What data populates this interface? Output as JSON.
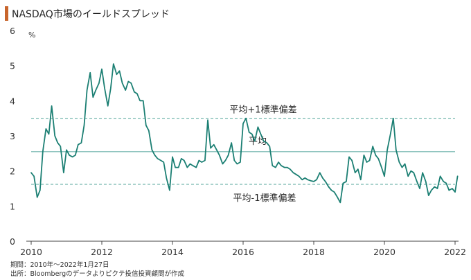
{
  "header": {
    "title": "NASDAQ市場のイールドスプレッド",
    "accent_color": "#c8652c"
  },
  "footer": {
    "period_note": "期間：2010年～2022年1月27日",
    "source_note": "出所：Bloombergのデータよりピクテ投信投資顧問が作成"
  },
  "chart_data": {
    "type": "line",
    "title": "NASDAQ市場のイールドスプレッド",
    "xlabel": "",
    "ylabel": "",
    "y_unit_label": "%",
    "xlim": [
      2010,
      2022
    ],
    "ylim": [
      0,
      6
    ],
    "x_ticks": [
      "2010",
      "2012",
      "2014",
      "2016",
      "2018",
      "2020",
      "2022"
    ],
    "y_ticks": [
      "0",
      "1",
      "2",
      "3",
      "4",
      "5",
      "6"
    ],
    "grid": false,
    "line_color": "#1b7f73",
    "reference_lines": [
      {
        "label": "平均+1標準偏差",
        "value": 3.5,
        "style": "dashed",
        "color": "#7fbcb4"
      },
      {
        "label": "平均",
        "value": 2.55,
        "style": "solid",
        "color": "#7fbcb4"
      },
      {
        "label": "平均-1標準偏差",
        "value": 1.62,
        "style": "dashed",
        "color": "#7fbcb4"
      }
    ],
    "series": [
      {
        "points": [
          [
            2010.0,
            1.95
          ],
          [
            2010.08,
            1.85
          ],
          [
            2010.17,
            1.25
          ],
          [
            2010.25,
            1.45
          ],
          [
            2010.33,
            2.55
          ],
          [
            2010.42,
            3.2
          ],
          [
            2010.5,
            3.05
          ],
          [
            2010.58,
            3.85
          ],
          [
            2010.67,
            3.0
          ],
          [
            2010.75,
            2.8
          ],
          [
            2010.83,
            2.7
          ],
          [
            2010.92,
            1.95
          ],
          [
            2011.0,
            2.6
          ],
          [
            2011.08,
            2.45
          ],
          [
            2011.17,
            2.4
          ],
          [
            2011.25,
            2.45
          ],
          [
            2011.33,
            2.75
          ],
          [
            2011.42,
            2.8
          ],
          [
            2011.5,
            3.3
          ],
          [
            2011.58,
            4.3
          ],
          [
            2011.67,
            4.8
          ],
          [
            2011.75,
            4.1
          ],
          [
            2011.83,
            4.3
          ],
          [
            2011.92,
            4.5
          ],
          [
            2012.0,
            4.9
          ],
          [
            2012.08,
            4.35
          ],
          [
            2012.17,
            3.85
          ],
          [
            2012.25,
            4.35
          ],
          [
            2012.33,
            5.05
          ],
          [
            2012.42,
            4.75
          ],
          [
            2012.5,
            4.85
          ],
          [
            2012.58,
            4.5
          ],
          [
            2012.67,
            4.3
          ],
          [
            2012.75,
            4.55
          ],
          [
            2012.83,
            4.5
          ],
          [
            2012.92,
            4.25
          ],
          [
            2013.0,
            4.2
          ],
          [
            2013.08,
            4.0
          ],
          [
            2013.17,
            4.0
          ],
          [
            2013.25,
            3.3
          ],
          [
            2013.33,
            3.15
          ],
          [
            2013.42,
            2.6
          ],
          [
            2013.5,
            2.45
          ],
          [
            2013.58,
            2.35
          ],
          [
            2013.67,
            2.3
          ],
          [
            2013.75,
            2.25
          ],
          [
            2013.83,
            1.8
          ],
          [
            2013.92,
            1.45
          ],
          [
            2014.0,
            2.4
          ],
          [
            2014.08,
            2.1
          ],
          [
            2014.17,
            2.1
          ],
          [
            2014.25,
            2.35
          ],
          [
            2014.33,
            2.3
          ],
          [
            2014.42,
            2.1
          ],
          [
            2014.5,
            2.2
          ],
          [
            2014.58,
            2.15
          ],
          [
            2014.67,
            2.1
          ],
          [
            2014.75,
            2.3
          ],
          [
            2014.83,
            2.25
          ],
          [
            2014.92,
            2.3
          ],
          [
            2015.0,
            3.45
          ],
          [
            2015.08,
            2.65
          ],
          [
            2015.17,
            2.75
          ],
          [
            2015.25,
            2.6
          ],
          [
            2015.33,
            2.45
          ],
          [
            2015.42,
            2.2
          ],
          [
            2015.5,
            2.3
          ],
          [
            2015.58,
            2.45
          ],
          [
            2015.67,
            2.8
          ],
          [
            2015.75,
            2.3
          ],
          [
            2015.83,
            2.2
          ],
          [
            2015.92,
            2.25
          ],
          [
            2016.0,
            3.35
          ],
          [
            2016.08,
            3.5
          ],
          [
            2016.17,
            3.1
          ],
          [
            2016.25,
            3.05
          ],
          [
            2016.33,
            2.85
          ],
          [
            2016.42,
            3.25
          ],
          [
            2016.5,
            3.05
          ],
          [
            2016.58,
            2.85
          ],
          [
            2016.67,
            2.8
          ],
          [
            2016.75,
            2.7
          ],
          [
            2016.83,
            2.15
          ],
          [
            2016.92,
            2.1
          ],
          [
            2017.0,
            2.25
          ],
          [
            2017.08,
            2.15
          ],
          [
            2017.17,
            2.1
          ],
          [
            2017.25,
            2.1
          ],
          [
            2017.33,
            2.05
          ],
          [
            2017.42,
            1.95
          ],
          [
            2017.5,
            1.9
          ],
          [
            2017.58,
            1.85
          ],
          [
            2017.67,
            1.75
          ],
          [
            2017.75,
            1.8
          ],
          [
            2017.83,
            1.75
          ],
          [
            2017.92,
            1.72
          ],
          [
            2018.0,
            1.7
          ],
          [
            2018.08,
            1.75
          ],
          [
            2018.17,
            1.95
          ],
          [
            2018.25,
            1.8
          ],
          [
            2018.33,
            1.7
          ],
          [
            2018.42,
            1.55
          ],
          [
            2018.5,
            1.45
          ],
          [
            2018.58,
            1.4
          ],
          [
            2018.67,
            1.25
          ],
          [
            2018.75,
            1.1
          ],
          [
            2018.83,
            1.65
          ],
          [
            2018.92,
            1.7
          ],
          [
            2019.0,
            2.4
          ],
          [
            2019.08,
            2.3
          ],
          [
            2019.17,
            1.95
          ],
          [
            2019.25,
            2.05
          ],
          [
            2019.33,
            1.75
          ],
          [
            2019.42,
            2.45
          ],
          [
            2019.5,
            2.25
          ],
          [
            2019.58,
            2.3
          ],
          [
            2019.67,
            2.7
          ],
          [
            2019.75,
            2.45
          ],
          [
            2019.83,
            2.35
          ],
          [
            2019.92,
            2.1
          ],
          [
            2020.0,
            1.85
          ],
          [
            2020.08,
            2.6
          ],
          [
            2020.17,
            3.05
          ],
          [
            2020.25,
            3.5
          ],
          [
            2020.33,
            2.6
          ],
          [
            2020.42,
            2.25
          ],
          [
            2020.5,
            2.1
          ],
          [
            2020.58,
            2.2
          ],
          [
            2020.67,
            1.85
          ],
          [
            2020.75,
            2.0
          ],
          [
            2020.83,
            1.95
          ],
          [
            2020.92,
            1.7
          ],
          [
            2021.0,
            1.5
          ],
          [
            2021.08,
            1.95
          ],
          [
            2021.17,
            1.7
          ],
          [
            2021.25,
            1.3
          ],
          [
            2021.33,
            1.45
          ],
          [
            2021.42,
            1.55
          ],
          [
            2021.5,
            1.5
          ],
          [
            2021.58,
            1.85
          ],
          [
            2021.67,
            1.7
          ],
          [
            2021.75,
            1.65
          ],
          [
            2021.83,
            1.45
          ],
          [
            2021.92,
            1.5
          ],
          [
            2022.0,
            1.4
          ],
          [
            2022.07,
            1.85
          ]
        ]
      }
    ]
  }
}
